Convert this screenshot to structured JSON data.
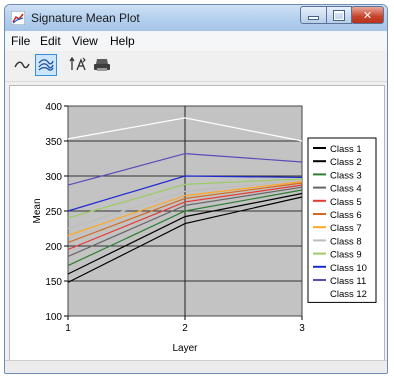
{
  "window": {
    "title": "Signature Mean Plot"
  },
  "menu": {
    "file": "File",
    "edit": "Edit",
    "view": "View",
    "help": "Help"
  },
  "chart_data": {
    "type": "line",
    "title": "",
    "xlabel": "Layer",
    "ylabel": "Mean",
    "x": [
      1,
      2,
      3
    ],
    "xlim": [
      1,
      3
    ],
    "ylim": [
      100,
      400
    ],
    "yticks": [
      100,
      150,
      200,
      250,
      300,
      350,
      400
    ],
    "grid": true,
    "legend_position": "right",
    "series": [
      {
        "name": "Class 1",
        "color": "#000000",
        "values": [
          148,
          232,
          270
        ]
      },
      {
        "name": "Class 2",
        "color": "#000000",
        "values": [
          160,
          242,
          275
        ]
      },
      {
        "name": "Class 3",
        "color": "#2e7d32",
        "values": [
          172,
          250,
          280
        ]
      },
      {
        "name": "Class 4",
        "color": "#666666",
        "values": [
          185,
          258,
          284
        ]
      },
      {
        "name": "Class 5",
        "color": "#e53935",
        "values": [
          195,
          263,
          287
        ]
      },
      {
        "name": "Class 6",
        "color": "#d2691e",
        "values": [
          205,
          268,
          290
        ]
      },
      {
        "name": "Class 7",
        "color": "#ffa726",
        "values": [
          215,
          272,
          292
        ]
      },
      {
        "name": "Class 8",
        "color": "#bdbdbd",
        "values": [
          225,
          278,
          294
        ]
      },
      {
        "name": "Class 9",
        "color": "#9ccc65",
        "values": [
          240,
          288,
          296
        ]
      },
      {
        "name": "Class 10",
        "color": "#1e2ad0",
        "values": [
          250,
          300,
          298
        ]
      },
      {
        "name": "Class 11",
        "color": "#5e4ab8",
        "values": [
          287,
          332,
          320
        ]
      },
      {
        "name": "Class 12",
        "color": "#ffffff",
        "values": [
          353,
          383,
          350
        ]
      }
    ]
  }
}
